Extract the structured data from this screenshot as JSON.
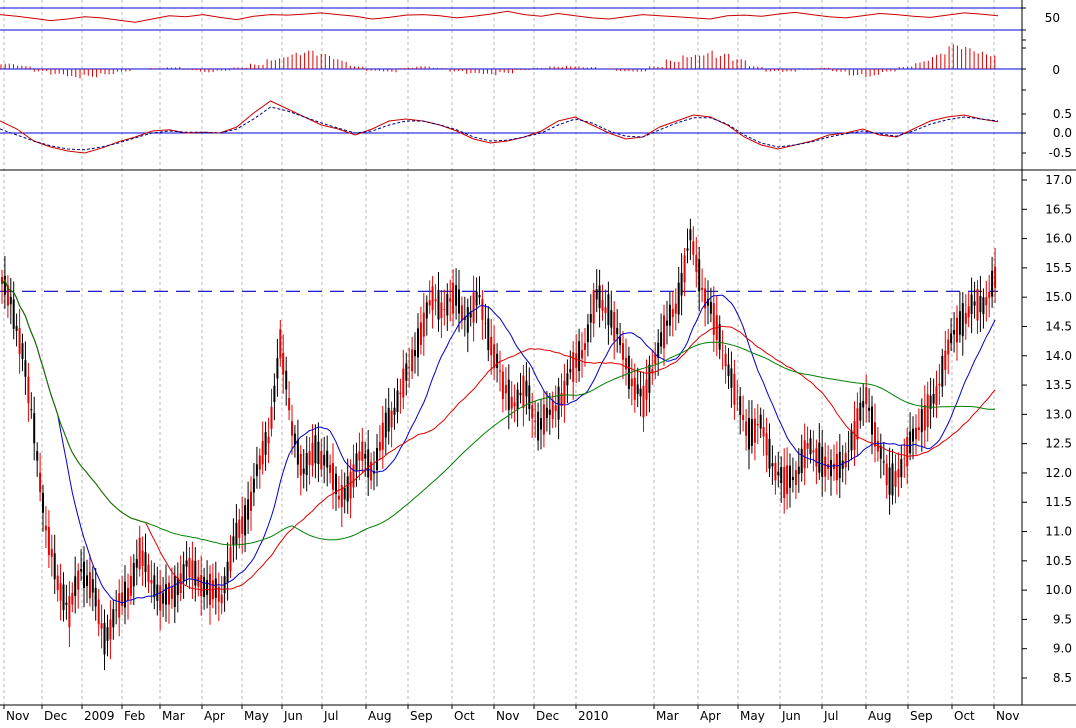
{
  "chart_data": [
    {
      "type": "line",
      "panel": "oscillator-top",
      "y_ticks": [
        50
      ],
      "levels": [
        70,
        30
      ],
      "values": [
        58,
        55,
        51,
        47,
        50,
        54,
        52,
        48,
        44,
        50,
        56,
        54,
        58,
        53,
        49,
        55,
        58,
        57,
        59,
        61,
        58,
        55,
        50,
        53,
        57,
        58,
        56,
        52,
        55,
        59,
        64,
        58,
        55,
        60,
        56,
        52,
        50,
        54,
        58,
        56,
        54,
        52,
        50,
        56,
        57,
        55,
        59,
        62,
        58,
        54,
        52,
        56,
        60,
        58,
        55,
        53,
        57,
        61,
        59,
        56
      ]
    },
    {
      "type": "bar",
      "panel": "histogram",
      "y_ticks": [
        0
      ],
      "values": [
        0.1,
        0.06,
        -0.05,
        -0.12,
        -0.18,
        -0.15,
        -0.1,
        -0.05,
        0,
        0.02,
        0.04,
        -0.02,
        -0.06,
        -0.03,
        0.03,
        0.1,
        0.22,
        0.3,
        0.34,
        0.28,
        0.18,
        0.06,
        -0.04,
        -0.06,
        0.02,
        0.05,
        0.02,
        -0.05,
        -0.1,
        -0.12,
        -0.08,
        -0.02,
        0.02,
        0.05,
        0.06,
        0.04,
        0.01,
        -0.04,
        -0.05,
        0.05,
        0.18,
        0.3,
        0.34,
        0.28,
        0.18,
        0.05,
        -0.05,
        -0.06,
        -0.02,
        0.02,
        -0.05,
        -0.12,
        -0.15,
        -0.06,
        0.05,
        0.15,
        0.28,
        0.45,
        0.4,
        0.33
      ]
    },
    {
      "type": "line",
      "panel": "macd",
      "y_ticks": [
        "0.5",
        "0.0",
        "-0.5"
      ],
      "series": [
        {
          "values": [
            0.3,
            0.1,
            -0.2,
            -0.35,
            -0.45,
            -0.5,
            -0.38,
            -0.22,
            -0.1,
            0.05,
            0.08,
            0.0,
            0.02,
            0.0,
            0.15,
            0.5,
            0.8,
            0.6,
            0.4,
            0.2,
            0.1,
            -0.05,
            0.1,
            0.3,
            0.35,
            0.3,
            0.2,
            0.05,
            -0.15,
            -0.25,
            -0.2,
            -0.1,
            0.05,
            0.3,
            0.4,
            0.2,
            0.0,
            -0.15,
            -0.1,
            0.15,
            0.3,
            0.45,
            0.4,
            0.2,
            -0.1,
            -0.3,
            -0.4,
            -0.3,
            -0.2,
            -0.05,
            0.0,
            0.1,
            -0.05,
            -0.1,
            0.1,
            0.3,
            0.4,
            0.45,
            0.35,
            0.28
          ]
        },
        {
          "values": [
            0.1,
            -0.05,
            -0.2,
            -0.32,
            -0.4,
            -0.42,
            -0.35,
            -0.25,
            -0.12,
            0.0,
            0.05,
            0.02,
            0.02,
            0.0,
            0.1,
            0.35,
            0.65,
            0.55,
            0.4,
            0.25,
            0.12,
            0.0,
            0.05,
            0.2,
            0.3,
            0.3,
            0.2,
            0.08,
            -0.1,
            -0.2,
            -0.18,
            -0.1,
            0.0,
            0.2,
            0.35,
            0.25,
            0.05,
            -0.08,
            -0.1,
            0.08,
            0.25,
            0.38,
            0.38,
            0.22,
            -0.05,
            -0.25,
            -0.35,
            -0.3,
            -0.22,
            -0.1,
            -0.02,
            0.05,
            -0.02,
            -0.08,
            0.05,
            0.22,
            0.33,
            0.4,
            0.35,
            0.3
          ]
        }
      ]
    },
    {
      "type": "candlestick",
      "panel": "price",
      "x_labels": [
        "Nov",
        "Dec",
        "2009",
        "Feb",
        "Mar",
        "Apr",
        "May",
        "Jun",
        "Jul",
        "Aug",
        "Sep",
        "Oct",
        "Nov",
        "Dec",
        "2010",
        "Mar",
        "Apr",
        "May",
        "Jun",
        "Jul",
        "Aug",
        "Sep",
        "Oct",
        "Nov"
      ],
      "y_ticks": [
        "17.0",
        "16.5",
        "16.0",
        "15.5",
        "15.0",
        "14.5",
        "14.0",
        "13.5",
        "13.0",
        "12.5",
        "12.0",
        "11.5",
        "11.0",
        "10.5",
        "10.0",
        "9.5",
        "9.0",
        "8.5"
      ],
      "ylim": [
        8.0,
        17.2
      ],
      "resistance": 15.1,
      "close": [
        15.0,
        14.0,
        12.8,
        11.0,
        10.2,
        9.6,
        10.4,
        10.0,
        9.2,
        9.6,
        10.0,
        10.6,
        10.2,
        9.8,
        10.0,
        10.4,
        10.2,
        10.0,
        9.9,
        10.8,
        11.2,
        12.0,
        12.6,
        14.2,
        12.8,
        12.0,
        12.4,
        12.2,
        11.6,
        11.8,
        12.4,
        12.0,
        12.8,
        13.2,
        13.8,
        14.4,
        15.0,
        14.8,
        15.0,
        14.6,
        15.0,
        14.2,
        13.5,
        13.2,
        13.4,
        12.8,
        13.0,
        13.3,
        13.8,
        14.2,
        15.0,
        14.8,
        14.2,
        13.6,
        13.2,
        14.0,
        14.5,
        15.0,
        16.0,
        15.2,
        14.6,
        14.0,
        13.2,
        12.7,
        12.8,
        12.2,
        11.8,
        12.0,
        12.4,
        12.3,
        12.0,
        12.2,
        12.6,
        13.4,
        12.4,
        11.9,
        12.0,
        12.7,
        12.9,
        13.4,
        14.1,
        14.6,
        14.8,
        14.9,
        15.3
      ]
    }
  ],
  "series_colors": {
    "candle_up": "#000000",
    "candle_down": "#e60000",
    "ma_fast": "#0000cc",
    "ma_mid": "#dd0000",
    "ma_slow": "#008000",
    "panel_line": "#0000dd"
  }
}
